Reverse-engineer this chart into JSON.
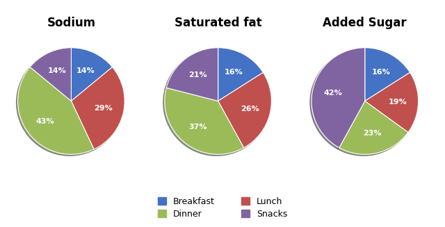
{
  "charts": [
    {
      "title": "Sodium",
      "labels": [
        "Breakfast",
        "Lunch",
        "Dinner",
        "Snacks"
      ],
      "values": [
        14,
        29,
        43,
        14
      ],
      "startangle": 90,
      "colors": [
        "#4472C4",
        "#C0504D",
        "#9BBB59",
        "#8064A2"
      ]
    },
    {
      "title": "Saturated fat",
      "labels": [
        "Breakfast",
        "Lunch",
        "Dinner",
        "Snacks"
      ],
      "values": [
        16,
        26,
        37,
        21
      ],
      "startangle": 90,
      "colors": [
        "#4472C4",
        "#C0504D",
        "#9BBB59",
        "#8064A2"
      ]
    },
    {
      "title": "Added Sugar",
      "labels": [
        "Breakfast",
        "Lunch",
        "Dinner",
        "Snacks"
      ],
      "values": [
        16,
        19,
        23,
        42
      ],
      "startangle": 90,
      "colors": [
        "#4472C4",
        "#C0504D",
        "#9BBB59",
        "#8064A2"
      ]
    }
  ],
  "legend_labels": [
    "Breakfast",
    "Dinner",
    "Lunch",
    "Snacks"
  ],
  "legend_colors": [
    "#4472C4",
    "#9BBB59",
    "#C0504D",
    "#8064A2"
  ],
  "bg_color": "#FFFFFF",
  "text_color": "#FFFFFF",
  "label_fontsize": 8,
  "title_fontsize": 12
}
